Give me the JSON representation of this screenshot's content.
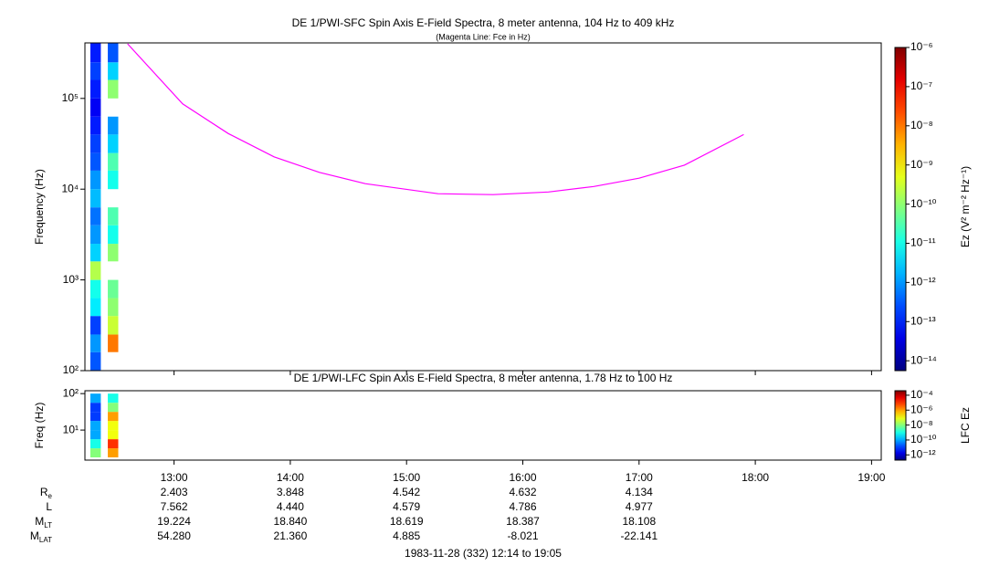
{
  "chart_data": [
    {
      "type": "spectrogram",
      "title": "DE 1/PWI-SFC  Spin Axis E-Field Spectra, 8 meter antenna, 104 Hz to 409 kHz",
      "subtitle": "(Magenta Line: Fce in Hz)",
      "y_label": "Frequency (Hz)",
      "y_log": true,
      "xlim": [
        12.2333,
        19.0833
      ],
      "xticks": [
        {
          "value": 13,
          "label": "13:00"
        },
        {
          "value": 14,
          "label": "14:00"
        },
        {
          "value": 15,
          "label": "15:00"
        },
        {
          "value": 16,
          "label": "16:00"
        },
        {
          "value": 17,
          "label": "17:00"
        },
        {
          "value": 18,
          "label": "18:00"
        },
        {
          "value": 19,
          "label": "19:00"
        }
      ],
      "ylim": [
        100,
        409000
      ],
      "yticks": [
        {
          "value": 100,
          "label": "10²"
        },
        {
          "value": 1000,
          "label": "10³"
        },
        {
          "value": 10000,
          "label": "10⁴"
        },
        {
          "value": 100000,
          "label": "10⁵"
        }
      ],
      "f_edges": [
        100,
        160,
        250,
        400,
        630,
        1000,
        1600,
        2500,
        4000,
        6300,
        10000,
        16000,
        25000,
        40000,
        63000,
        100000,
        160000,
        250000,
        409000
      ],
      "columns": [
        {
          "t0": 12.28,
          "t1": 12.37,
          "values": [
            3e-13,
            1e-12,
            2e-13,
            5e-12,
            1e-11,
            2e-10,
            3e-12,
            1e-12,
            5e-13,
            2e-12,
            1e-12,
            3e-13,
            2e-13,
            1e-13,
            5e-14,
            1e-13,
            2e-13,
            1e-13
          ]
        },
        {
          "t0": 12.43,
          "t1": 12.52,
          "values": [
            null,
            1e-08,
            3e-10,
            1e-10,
            5e-11,
            null,
            1e-10,
            1e-11,
            3e-11,
            null,
            1e-11,
            3e-11,
            3e-12,
            1e-12,
            null,
            1e-10,
            3e-12,
            3e-13
          ]
        }
      ],
      "line": {
        "color": "#ff00ff",
        "x": [
          12.6,
          13.074,
          13.467,
          13.86,
          14.25,
          14.645,
          15.27,
          15.745,
          16.22,
          16.61,
          17.0,
          17.39,
          17.9
        ],
        "values": [
          400000,
          87000,
          41000,
          22700,
          15300,
          11500,
          8900,
          8700,
          9300,
          10700,
          13200,
          18400,
          40000
        ]
      },
      "colorbar": {
        "label": "Ez (V² m⁻² Hz⁻¹)",
        "log": true,
        "clim": [
          5.6e-15,
          1e-06
        ],
        "ticks": [
          {
            "value": 1e-06,
            "label": "10⁻⁶"
          },
          {
            "value": 1e-07,
            "label": "10⁻⁷"
          },
          {
            "value": 1e-08,
            "label": "10⁻⁸"
          },
          {
            "value": 1e-09,
            "label": "10⁻⁹"
          },
          {
            "value": 1e-10,
            "label": "10⁻¹⁰"
          },
          {
            "value": 1e-11,
            "label": "10⁻¹¹"
          },
          {
            "value": 1e-12,
            "label": "10⁻¹²"
          },
          {
            "value": 1e-13,
            "label": "10⁻¹³"
          },
          {
            "value": 1e-14,
            "label": "10⁻¹⁴"
          }
        ]
      }
    },
    {
      "type": "spectrogram",
      "title": "DE 1/PWI-LFC  Spin Axis E-Field Spectra, 8 meter antenna, 1.78 Hz to 100 Hz",
      "y_label": "Freq (Hz)",
      "y_log": true,
      "xlim": [
        12.2333,
        19.0833
      ],
      "xticks": [
        {
          "value": 13,
          "label": "13:00"
        },
        {
          "value": 14,
          "label": "14:00"
        },
        {
          "value": 15,
          "label": "15:00"
        },
        {
          "value": 16,
          "label": "16:00"
        },
        {
          "value": 17,
          "label": "17:00"
        },
        {
          "value": 18,
          "label": "18:00"
        },
        {
          "value": 19,
          "label": "19:00"
        }
      ],
      "ylim": [
        1.5,
        120
      ],
      "yticks": [
        {
          "value": 10,
          "label": "10¹"
        },
        {
          "value": 100,
          "label": "10²"
        }
      ],
      "f_edges": [
        1.78,
        3.16,
        5.62,
        10,
        17.8,
        31.6,
        56.2,
        100
      ],
      "columns": [
        {
          "t0": 12.28,
          "t1": 12.37,
          "values": [
            1e-08,
            1e-09,
            1e-10,
            1e-10,
            1e-11,
            1e-11,
            1e-10
          ]
        },
        {
          "t0": 12.43,
          "t1": 12.52,
          "values": [
            1e-06,
            1e-05,
            1e-07,
            1e-07,
            1e-06,
            1e-08,
            1e-09
          ]
        }
      ],
      "colorbar": {
        "label": "LFC Ez",
        "log": true,
        "clim": [
          2e-13,
          0.0004
        ],
        "ticks": [
          {
            "value": 0.0001,
            "label": "10⁻⁴"
          },
          {
            "value": 1e-06,
            "label": "10⁻⁶"
          },
          {
            "value": 1e-08,
            "label": "10⁻⁸"
          },
          {
            "value": 1e-10,
            "label": "10⁻¹⁰"
          },
          {
            "value": 1e-12,
            "label": "10⁻¹²"
          }
        ]
      }
    }
  ],
  "ephemeris": {
    "rows": [
      {
        "label": "R",
        "sub": "e",
        "values": [
          "2.403",
          "3.848",
          "4.542",
          "4.632",
          "4.134"
        ]
      },
      {
        "label": "L",
        "values": [
          "7.562",
          "4.440",
          "4.579",
          "4.786",
          "4.977"
        ]
      },
      {
        "label": "M",
        "sub": "LT",
        "values": [
          "19.224",
          "18.840",
          "18.619",
          "18.387",
          "18.108"
        ]
      },
      {
        "label": "M",
        "sub": "LAT",
        "values": [
          "54.280",
          "21.360",
          "4.885",
          "-8.021",
          "-22.141"
        ]
      }
    ]
  },
  "footer": "1983-11-28 (332) 12:14 to 19:05"
}
